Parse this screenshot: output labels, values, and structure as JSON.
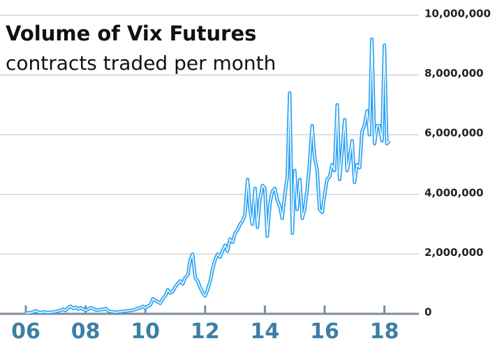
{
  "chart_data": {
    "type": "line",
    "title": "Volume of Vix Futures",
    "subtitle": "contracts traded per month",
    "series": [
      {
        "name": "Vix futures volume",
        "color": "#2ea3f2",
        "x": [
          2006,
          2006.08,
          2006.17,
          2006.25,
          2006.33,
          2006.42,
          2006.5,
          2006.58,
          2006.67,
          2006.75,
          2006.83,
          2006.92,
          2007,
          2007.08,
          2007.17,
          2007.25,
          2007.33,
          2007.42,
          2007.5,
          2007.58,
          2007.67,
          2007.75,
          2007.83,
          2007.92,
          2008,
          2008.08,
          2008.17,
          2008.25,
          2008.33,
          2008.42,
          2008.5,
          2008.58,
          2008.67,
          2008.75,
          2008.83,
          2008.92,
          2009,
          2009.08,
          2009.17,
          2009.25,
          2009.33,
          2009.42,
          2009.5,
          2009.58,
          2009.67,
          2009.75,
          2009.83,
          2009.92,
          2010,
          2010.08,
          2010.17,
          2010.25,
          2010.33,
          2010.42,
          2010.5,
          2010.58,
          2010.67,
          2010.75,
          2010.83,
          2010.92,
          2011,
          2011.08,
          2011.17,
          2011.25,
          2011.33,
          2011.42,
          2011.5,
          2011.58,
          2011.67,
          2011.75,
          2011.83,
          2011.92,
          2012,
          2012.08,
          2012.17,
          2012.25,
          2012.33,
          2012.42,
          2012.5,
          2012.58,
          2012.67,
          2012.75,
          2012.83,
          2012.92,
          2013,
          2013.08,
          2013.17,
          2013.25,
          2013.33,
          2013.42,
          2013.5,
          2013.58,
          2013.67,
          2013.75,
          2013.83,
          2013.92,
          2014,
          2014.08,
          2014.17,
          2014.25,
          2014.33,
          2014.42,
          2014.5,
          2014.58,
          2014.67,
          2014.75,
          2014.83,
          2014.92,
          2015,
          2015.08,
          2015.17,
          2015.25,
          2015.33,
          2015.42,
          2015.5,
          2015.58,
          2015.67,
          2015.75,
          2015.83,
          2015.92,
          2016,
          2016.08,
          2016.17,
          2016.25,
          2016.33,
          2016.42,
          2016.5,
          2016.58,
          2016.67,
          2016.75,
          2016.83,
          2016.92,
          2017,
          2017.08,
          2017.17,
          2017.25,
          2017.33,
          2017.42,
          2017.5,
          2017.58,
          2017.67,
          2017.75,
          2017.83,
          2017.92,
          2018,
          2018.08,
          2018.17
        ],
        "values": [
          20000,
          30000,
          40000,
          60000,
          100000,
          50000,
          40000,
          60000,
          50000,
          40000,
          50000,
          60000,
          70000,
          90000,
          120000,
          150000,
          110000,
          200000,
          250000,
          180000,
          220000,
          160000,
          200000,
          150000,
          120000,
          150000,
          200000,
          180000,
          130000,
          120000,
          150000,
          140000,
          180000,
          100000,
          80000,
          60000,
          50000,
          60000,
          70000,
          80000,
          90000,
          100000,
          110000,
          120000,
          150000,
          180000,
          200000,
          250000,
          200000,
          250000,
          300000,
          500000,
          450000,
          400000,
          350000,
          500000,
          600000,
          800000,
          700000,
          750000,
          900000,
          1000000,
          1100000,
          1000000,
          1200000,
          1300000,
          1800000,
          2000000,
          1200000,
          1100000,
          900000,
          700000,
          600000,
          800000,
          1100000,
          1500000,
          1800000,
          2000000,
          1900000,
          2100000,
          2300000,
          2100000,
          2500000,
          2400000,
          2700000,
          2800000,
          3000000,
          3100000,
          3300000,
          4500000,
          3500000,
          3000000,
          4200000,
          2900000,
          3800000,
          4300000,
          4200000,
          2600000,
          3700000,
          4100000,
          4200000,
          3800000,
          3600000,
          3200000,
          4000000,
          4600000,
          7400000,
          2700000,
          4800000,
          3500000,
          4500000,
          3200000,
          3500000,
          4200000,
          5100000,
          6300000,
          5200000,
          4800000,
          3500000,
          3400000,
          4000000,
          4500000,
          4600000,
          5000000,
          4800000,
          7000000,
          4500000,
          5400000,
          6500000,
          4800000,
          5200000,
          5800000,
          4400000,
          5000000,
          4900000,
          6100000,
          6300000,
          6800000,
          6000000,
          9200000,
          5700000,
          6300000,
          6300000,
          5800000,
          9000000,
          5700000,
          5800000
        ]
      }
    ],
    "xlim": [
      2006,
      2018.35
    ],
    "xticks": [
      {
        "value": 2006,
        "label": "06"
      },
      {
        "value": 2008,
        "label": "08"
      },
      {
        "value": 2010,
        "label": "10"
      },
      {
        "value": 2012,
        "label": "12"
      },
      {
        "value": 2014,
        "label": "14"
      },
      {
        "value": 2016,
        "label": "16"
      },
      {
        "value": 2018,
        "label": "18"
      }
    ],
    "ylim": [
      0,
      10000000
    ],
    "yticks": [
      0,
      {
        "value": 2000000,
        "label": "2,000,000"
      },
      {
        "value": 4000000,
        "label": "4,000,000"
      },
      {
        "value": 6000000,
        "label": "6,000,000"
      },
      {
        "value": 8000000,
        "label": "8,000,000"
      },
      {
        "value": 10000000,
        "label": "10,000,000"
      }
    ],
    "grid": true
  }
}
